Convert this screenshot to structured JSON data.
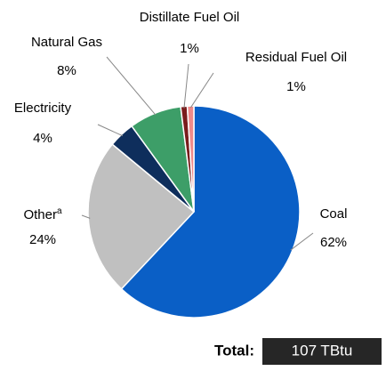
{
  "chart_data": {
    "type": "pie",
    "categories": [
      "Coal",
      "Other",
      "Electricity",
      "Natural Gas",
      "Distillate Fuel Oil",
      "Residual Fuel Oil"
    ],
    "category_notes": {
      "1": "a"
    },
    "values": [
      62,
      24,
      4,
      8,
      1,
      1
    ],
    "value_labels": [
      "62%",
      "24%",
      "4%",
      "8%",
      "1%",
      "1%"
    ],
    "colors": [
      "#0a5fc6",
      "#c0c0c0",
      "#0e2e5c",
      "#3d9e68",
      "#7a1c1c",
      "#f08a8a"
    ],
    "total_label": "Total:",
    "total_value": "107 TBtu"
  }
}
